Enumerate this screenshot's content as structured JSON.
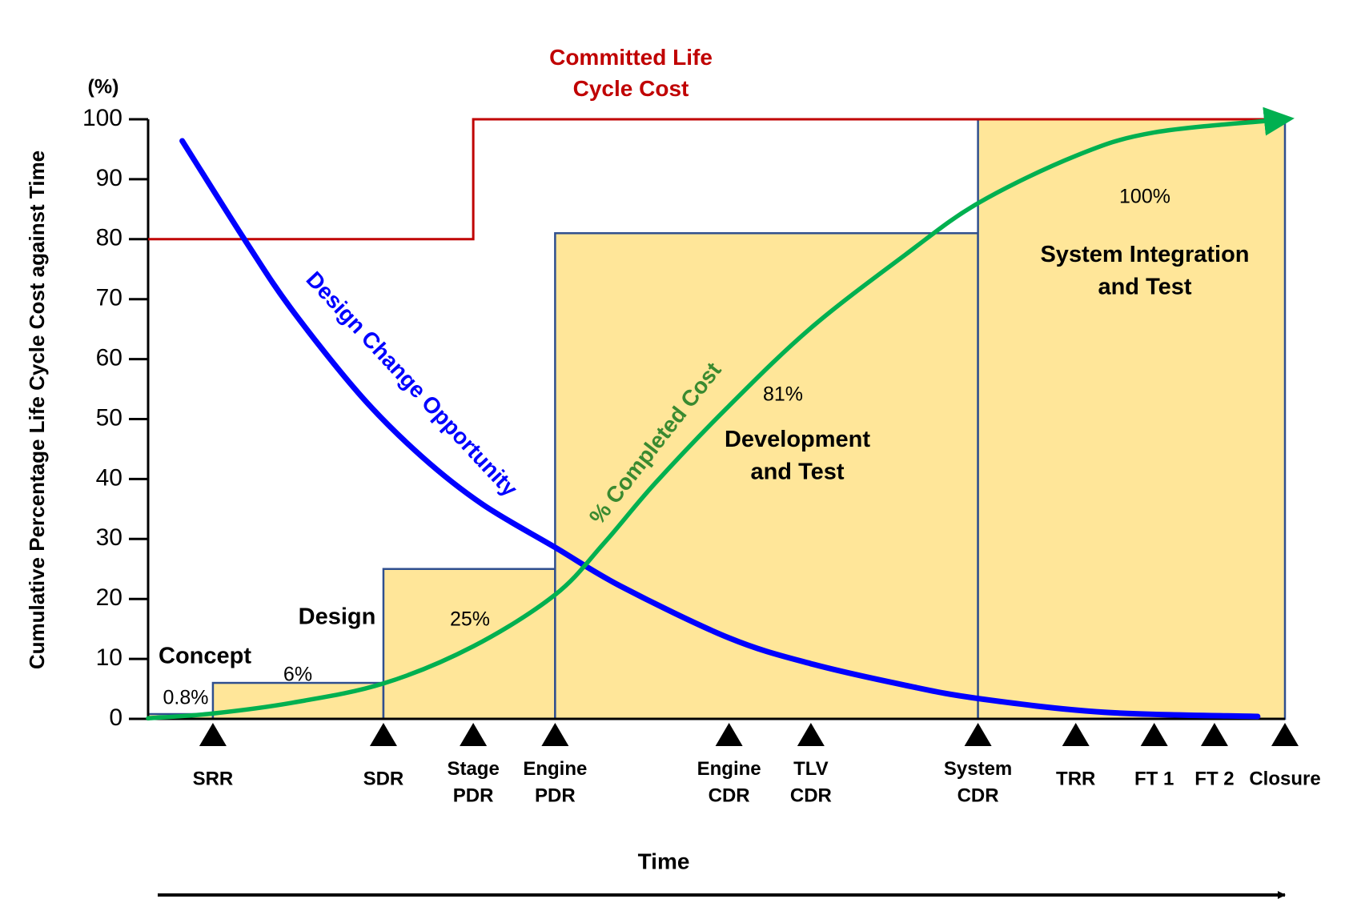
{
  "chart_data": {
    "type": "lifecycle",
    "ylabel": "Cumulative Percentage Life Cycle Cost against Time",
    "ylabel_unit": "(%)",
    "xlabel": "Time",
    "xlim": [
      0,
      100
    ],
    "ylim": [
      0,
      100
    ],
    "yticks": [
      0,
      10,
      20,
      30,
      40,
      50,
      60,
      70,
      80,
      90,
      100
    ],
    "phases": {
      "bins": [
        0,
        5.7,
        20.7,
        35.8,
        73.0,
        100
      ],
      "values": [
        0.8,
        6,
        25,
        81,
        100
      ],
      "value_labels": [
        "0.8%",
        "6%",
        "25%",
        "81%",
        "100%"
      ],
      "color": "#ffe699",
      "edge_color": "#2f4f8f"
    },
    "phase_labels": [
      "Concept",
      "Design",
      "Development\nand Test",
      "System Integration\nand Test"
    ],
    "series": [
      {
        "name": "Committed Life\nCycle Cost",
        "color": "#c00000",
        "style": "step",
        "x": [
          0,
          28.6,
          28.6,
          100
        ],
        "values": [
          80,
          80,
          100,
          100
        ]
      },
      {
        "name": "Design Change Opportunity",
        "color": "#0000ff",
        "style": "smooth",
        "x": [
          3.0,
          8.6,
          12.7,
          18.8,
          24.1,
          29.4,
          35.8,
          41.6,
          51.1,
          58.3,
          66.6,
          73.0,
          84.1,
          97.6
        ],
        "values": [
          96.4,
          79.6,
          68.1,
          53.7,
          43.7,
          35.8,
          28.6,
          22.1,
          13.5,
          9.2,
          5.6,
          3.4,
          1.1,
          0.4
        ]
      },
      {
        "name": "% Completed Cost",
        "color": "#00b050",
        "style": "smooth-arrow",
        "x": [
          0,
          5.7,
          12.7,
          20.7,
          28.6,
          35.8,
          40.1,
          44.6,
          51.1,
          58.3,
          66.6,
          73.0,
          81.6,
          88.5,
          100
        ],
        "values": [
          0.1,
          0.9,
          2.7,
          5.9,
          12.1,
          20.7,
          29.3,
          39.3,
          52.2,
          65.2,
          77.4,
          86.0,
          93.9,
          97.8,
          100
        ]
      }
    ],
    "milestones": {
      "labels": [
        "SRR",
        "SDR",
        "Stage\nPDR",
        "Engine\nPDR",
        "Engine\nCDR",
        "TLV\nCDR",
        "System\nCDR",
        "TRR",
        "FT 1",
        "FT 2",
        "Closure"
      ],
      "x": [
        5.7,
        20.7,
        28.6,
        35.8,
        51.1,
        58.3,
        73.0,
        81.6,
        88.5,
        93.8,
        100
      ]
    }
  }
}
